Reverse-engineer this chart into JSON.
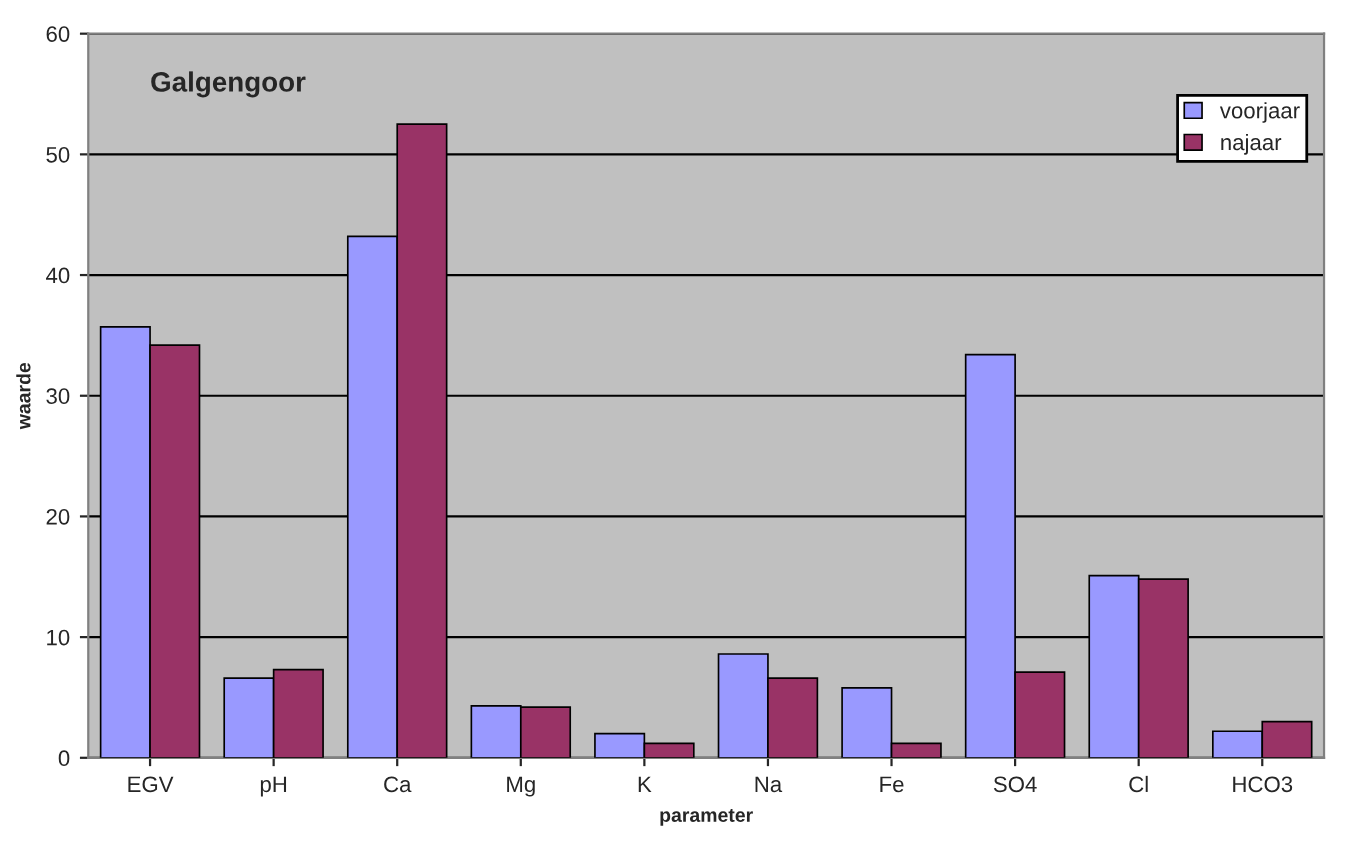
{
  "chart_data": {
    "type": "bar",
    "title": "Galgengoor",
    "xlabel": "parameter",
    "ylabel": "waarde",
    "categories": [
      "EGV",
      "pH",
      "Ca",
      "Mg",
      "K",
      "Na",
      "Fe",
      "SO4",
      "Cl",
      "HCO3"
    ],
    "series": [
      {
        "name": "voorjaar",
        "color": "#9999ff",
        "values": [
          35.7,
          6.6,
          43.2,
          4.3,
          2.0,
          8.6,
          5.8,
          33.4,
          15.1,
          2.2
        ]
      },
      {
        "name": "najaar",
        "color": "#993366",
        "values": [
          34.2,
          7.3,
          52.5,
          4.2,
          1.2,
          6.6,
          1.2,
          7.1,
          14.8,
          3.0
        ]
      }
    ],
    "ylim": [
      0,
      60
    ],
    "yticks": [
      0,
      10,
      20,
      30,
      40,
      50,
      60
    ],
    "grid": "y",
    "legend": "top right"
  }
}
